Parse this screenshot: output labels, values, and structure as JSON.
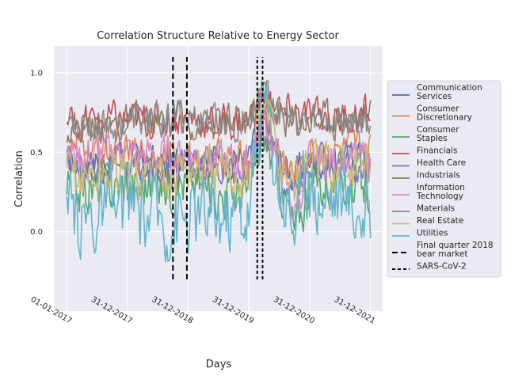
{
  "chart_data": {
    "type": "line",
    "title": "Correlation Structure Relative to Energy Sector",
    "xlabel": "Days",
    "ylabel": "Correlation",
    "x_ticks": [
      "01-01-2017",
      "31-12-2017",
      "31-12-2018",
      "31-12-2019",
      "31-12-2020",
      "31-12-2021"
    ],
    "y_ticks": [
      0.0,
      0.5,
      1.0
    ],
    "xlim": [
      "2016-10-15",
      "2022-03-15"
    ],
    "ylim": [
      -0.5,
      1.17
    ],
    "grid": true,
    "legend_position": "right",
    "series": [
      {
        "name": "Communication Services",
        "color": "#4c72b0",
        "x": [
          "2017-01-01",
          "2017-07-01",
          "2018-01-01",
          "2018-07-01",
          "2019-01-01",
          "2019-07-01",
          "2020-01-01",
          "2020-04-01",
          "2020-07-01",
          "2020-10-01",
          "2021-01-01",
          "2021-07-01",
          "2022-01-01"
        ],
        "values": [
          0.42,
          0.45,
          0.44,
          0.42,
          0.45,
          0.47,
          0.46,
          0.7,
          0.45,
          0.35,
          0.45,
          0.45,
          0.46
        ]
      },
      {
        "name": "Consumer Discretionary",
        "color": "#dd8452",
        "x": [
          "2017-01-01",
          "2017-07-01",
          "2018-01-01",
          "2018-07-01",
          "2019-01-01",
          "2019-07-01",
          "2020-01-01",
          "2020-04-01",
          "2020-07-01",
          "2020-10-01",
          "2021-01-01",
          "2021-07-01",
          "2022-01-01"
        ],
        "values": [
          0.52,
          0.5,
          0.5,
          0.5,
          0.45,
          0.45,
          0.44,
          0.75,
          0.5,
          0.35,
          0.5,
          0.5,
          0.52
        ]
      },
      {
        "name": "Consumer Staples",
        "color": "#55a868",
        "x": [
          "2017-01-01",
          "2017-07-01",
          "2018-01-01",
          "2018-07-01",
          "2019-01-01",
          "2019-07-01",
          "2020-01-01",
          "2020-04-01",
          "2020-07-01",
          "2020-10-01",
          "2021-01-01",
          "2021-07-01",
          "2022-01-01"
        ],
        "values": [
          0.28,
          0.27,
          0.3,
          0.3,
          0.32,
          0.25,
          0.25,
          0.6,
          0.35,
          0.0,
          0.3,
          0.32,
          0.3
        ]
      },
      {
        "name": "Financials",
        "color": "#c44e52",
        "x": [
          "2017-01-01",
          "2017-07-01",
          "2018-01-01",
          "2018-07-01",
          "2019-01-01",
          "2019-07-01",
          "2020-01-01",
          "2020-04-01",
          "2020-07-01",
          "2020-10-01",
          "2021-01-01",
          "2021-07-01",
          "2022-01-01"
        ],
        "values": [
          0.68,
          0.7,
          0.7,
          0.7,
          0.72,
          0.68,
          0.7,
          0.85,
          0.72,
          0.75,
          0.72,
          0.72,
          0.74
        ]
      },
      {
        "name": "Health Care",
        "color": "#8172b3",
        "x": [
          "2017-01-01",
          "2017-07-01",
          "2018-01-01",
          "2018-07-01",
          "2019-01-01",
          "2019-07-01",
          "2020-01-01",
          "2020-04-01",
          "2020-07-01",
          "2020-10-01",
          "2021-01-01",
          "2021-07-01",
          "2022-01-01"
        ],
        "values": [
          0.4,
          0.42,
          0.42,
          0.4,
          0.42,
          0.4,
          0.42,
          0.7,
          0.4,
          0.25,
          0.4,
          0.42,
          0.42
        ]
      },
      {
        "name": "Industrials",
        "color": "#937860",
        "x": [
          "2017-01-01",
          "2017-07-01",
          "2018-01-01",
          "2018-07-01",
          "2019-01-01",
          "2019-07-01",
          "2020-01-01",
          "2020-04-01",
          "2020-07-01",
          "2020-10-01",
          "2021-01-01",
          "2021-07-01",
          "2022-01-01"
        ],
        "values": [
          0.66,
          0.67,
          0.68,
          0.68,
          0.7,
          0.68,
          0.7,
          0.9,
          0.75,
          0.7,
          0.72,
          0.72,
          0.72
        ]
      },
      {
        "name": "Information Technology",
        "color": "#da8bc3",
        "x": [
          "2017-01-01",
          "2017-07-01",
          "2018-01-01",
          "2018-07-01",
          "2019-01-01",
          "2019-07-01",
          "2020-01-01",
          "2020-04-01",
          "2020-07-01",
          "2020-10-01",
          "2021-01-01",
          "2021-07-01",
          "2022-01-01"
        ],
        "values": [
          0.48,
          0.5,
          0.5,
          0.48,
          0.5,
          0.45,
          0.42,
          0.7,
          0.45,
          0.1,
          0.45,
          0.45,
          0.46
        ]
      },
      {
        "name": "Materials",
        "color": "#8c8c8c",
        "x": [
          "2017-01-01",
          "2017-07-01",
          "2018-01-01",
          "2018-07-01",
          "2019-01-01",
          "2019-07-01",
          "2020-01-01",
          "2020-04-01",
          "2020-07-01",
          "2020-10-01",
          "2021-01-01",
          "2021-07-01",
          "2022-01-01"
        ],
        "values": [
          0.7,
          0.68,
          0.68,
          0.7,
          0.72,
          0.68,
          0.7,
          0.92,
          0.75,
          0.68,
          0.7,
          0.7,
          0.7
        ]
      },
      {
        "name": "Real Estate",
        "color": "#ccb974",
        "x": [
          "2017-01-01",
          "2017-07-01",
          "2018-01-01",
          "2018-07-01",
          "2019-01-01",
          "2019-07-01",
          "2020-01-01",
          "2020-04-01",
          "2020-07-01",
          "2020-10-01",
          "2021-01-01",
          "2021-07-01",
          "2022-01-01"
        ],
        "values": [
          0.35,
          0.35,
          0.38,
          0.35,
          0.4,
          0.35,
          0.35,
          0.85,
          0.45,
          0.3,
          0.4,
          0.4,
          0.38
        ]
      },
      {
        "name": "Utilities",
        "color": "#64b5cd",
        "x": [
          "2017-01-01",
          "2017-07-01",
          "2018-01-01",
          "2018-07-01",
          "2019-01-01",
          "2019-07-01",
          "2020-01-01",
          "2020-04-01",
          "2020-07-01",
          "2020-10-01",
          "2021-01-01",
          "2021-07-01",
          "2022-01-01"
        ],
        "values": [
          0.05,
          0.12,
          0.15,
          0.1,
          0.1,
          0.12,
          0.15,
          0.85,
          0.35,
          0.1,
          0.25,
          0.25,
          0.1
        ]
      }
    ],
    "vlines": [
      {
        "name": "Final quarter 2018 bear market",
        "style": "long-dash",
        "x": [
          "2018-10-01",
          "2018-12-24"
        ],
        "y": [
          -0.3,
          1.1
        ]
      },
      {
        "name": "SARS-CoV-2",
        "style": "short-dash",
        "x": [
          "2020-02-20",
          "2020-03-23"
        ],
        "y": [
          -0.3,
          1.1
        ]
      }
    ]
  }
}
